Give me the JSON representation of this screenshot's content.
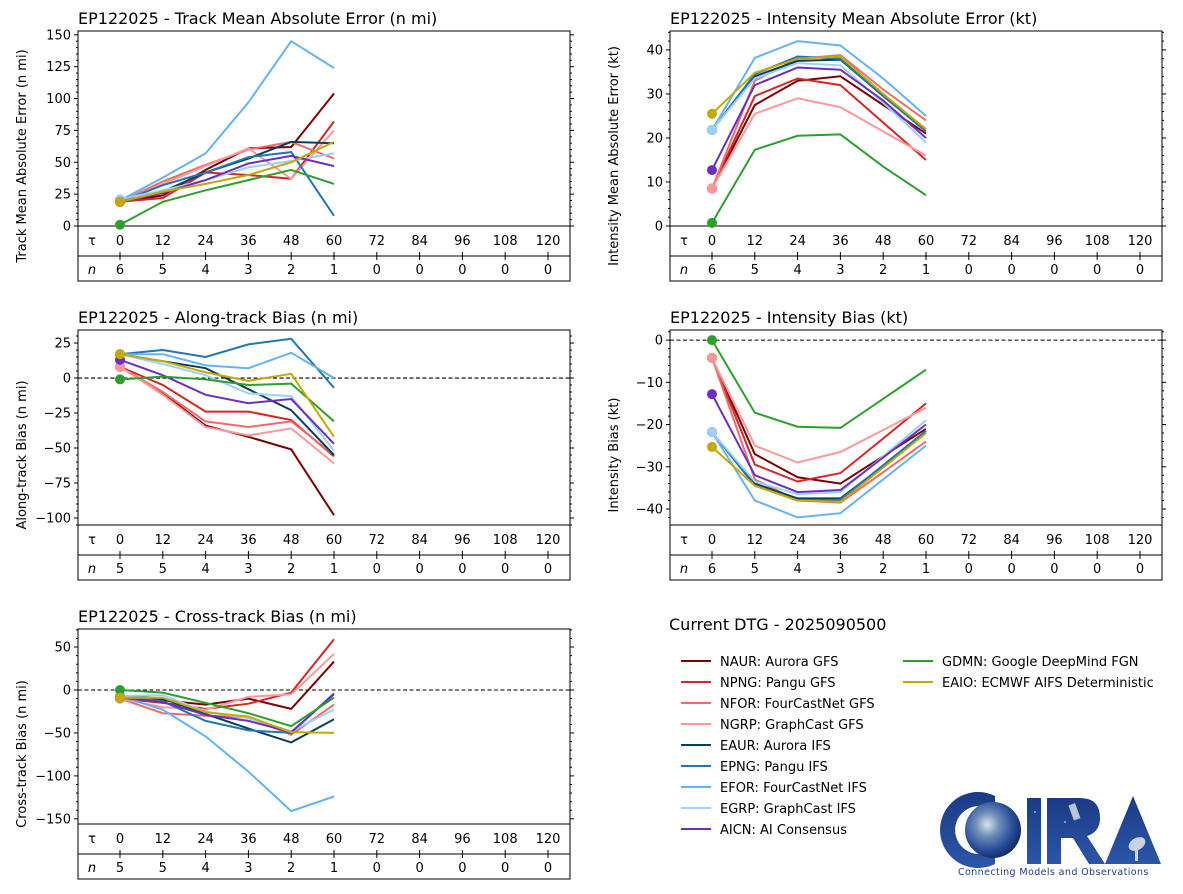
{
  "figure": {
    "dtg_label": "Current DTG - 2025090500",
    "logo": {
      "name": "CIRA",
      "tagline": "Connecting Models and Observations"
    }
  },
  "models": [
    {
      "id": "NAUR",
      "label": "NAUR: Aurora GFS",
      "color": "#7f0000"
    },
    {
      "id": "NPNG",
      "label": "NPNG: Pangu GFS",
      "color": "#d62728"
    },
    {
      "id": "NFOR",
      "label": "NFOR: FourCastNet GFS",
      "color": "#f26b6b"
    },
    {
      "id": "NGRP",
      "label": "NGRP: GraphCast GFS",
      "color": "#ff9999"
    },
    {
      "id": "EAUR",
      "label": "EAUR: Aurora IFS",
      "color": "#08415c"
    },
    {
      "id": "EPNG",
      "label": "EPNG: Pangu IFS",
      "color": "#1f77b4"
    },
    {
      "id": "EFOR",
      "label": "EFOR: FourCastNet IFS",
      "color": "#63b3f5"
    },
    {
      "id": "EGRP",
      "label": "EGRP: GraphCast IFS",
      "color": "#9fcffb"
    },
    {
      "id": "AICN",
      "label": "AICN: AI Consensus",
      "color": "#6a2fc4"
    },
    {
      "id": "GDMN",
      "label": "GDMN: Google DeepMind FGN",
      "color": "#2ca02c"
    },
    {
      "id": "EAIO",
      "label": "EAIO: ECMWF AIFS Deterministic",
      "color": "#c4aa00"
    }
  ],
  "chart_data": [
    {
      "id": "track-mae",
      "type": "line",
      "title": "EP122025 - Track Mean Absolute Error (n mi)",
      "ylabel": "Track Mean Absolute Error (n mi)",
      "xlabel": "",
      "ylim": [
        0,
        153
      ],
      "yticks": [
        0,
        25,
        50,
        75,
        100,
        125,
        150
      ],
      "zero_line": false,
      "tau_label": "τ",
      "n_label": "n",
      "x": [
        0,
        12,
        24,
        36,
        48,
        60,
        72,
        84,
        96,
        108,
        120
      ],
      "n": [
        6,
        5,
        4,
        3,
        2,
        1,
        0,
        0,
        0,
        0,
        0
      ],
      "series": [
        {
          "name": "NAUR",
          "values": [
            19,
            24,
            44,
            61,
            62,
            104
          ]
        },
        {
          "name": "NPNG",
          "values": [
            19,
            22,
            42,
            40,
            37,
            82
          ]
        },
        {
          "name": "NFOR",
          "values": [
            19,
            35,
            48,
            60,
            66,
            53
          ]
        },
        {
          "name": "NGRP",
          "values": [
            19,
            33,
            47,
            61,
            37,
            75
          ]
        },
        {
          "name": "EAUR",
          "values": [
            19,
            27,
            42,
            53,
            66,
            65
          ]
        },
        {
          "name": "EPNG",
          "values": [
            19,
            32,
            42,
            54,
            58,
            8
          ]
        },
        {
          "name": "EFOR",
          "values": [
            20,
            38,
            57,
            97,
            145,
            124
          ]
        },
        {
          "name": "EGRP",
          "values": [
            21,
            28,
            36,
            46,
            51,
            57
          ]
        },
        {
          "name": "AICN",
          "values": [
            19,
            26,
            36,
            49,
            55,
            47
          ]
        },
        {
          "name": "GDMN",
          "values": [
            1,
            19,
            28,
            36,
            44,
            33
          ]
        },
        {
          "name": "EAIO",
          "values": [
            19,
            27,
            33,
            40,
            50,
            66
          ]
        }
      ]
    },
    {
      "id": "intensity-mae",
      "type": "line",
      "title": "EP122025 - Intensity Mean Absolute Error (kt)",
      "ylabel": "Intensity Mean Absolute Error (kt)",
      "xlabel": "",
      "ylim": [
        0,
        44.3
      ],
      "yticks": [
        0,
        10,
        20,
        30,
        40
      ],
      "zero_line": false,
      "tau_label": "τ",
      "n_label": "n",
      "x": [
        0,
        12,
        24,
        36,
        48,
        60,
        72,
        84,
        96,
        108,
        120
      ],
      "n": [
        6,
        5,
        4,
        3,
        2,
        1,
        0,
        0,
        0,
        0,
        0
      ],
      "series": [
        {
          "name": "NAUR",
          "values": [
            8.5,
            27.5,
            33,
            34,
            27.5,
            21
          ]
        },
        {
          "name": "NPNG",
          "values": [
            8.5,
            29.5,
            33.5,
            32,
            23.5,
            15
          ]
        },
        {
          "name": "NFOR",
          "values": [
            8.5,
            33,
            38,
            38.8,
            31,
            24
          ]
        },
        {
          "name": "NGRP",
          "values": [
            8.5,
            25.5,
            29,
            27,
            21.5,
            16
          ]
        },
        {
          "name": "EAUR",
          "values": [
            21.8,
            34,
            37.5,
            37.8,
            29.5,
            22
          ]
        },
        {
          "name": "EPNG",
          "values": [
            21.8,
            34.5,
            38.5,
            38,
            29.5,
            21.5
          ]
        },
        {
          "name": "EFOR",
          "values": [
            21.8,
            38.2,
            42,
            41,
            33.5,
            25
          ]
        },
        {
          "name": "EGRP",
          "values": [
            21.8,
            33.5,
            37,
            36.5,
            28,
            19
          ]
        },
        {
          "name": "AICN",
          "values": [
            12.7,
            32,
            36,
            35.5,
            28.5,
            20
          ]
        },
        {
          "name": "GDMN",
          "values": [
            0.7,
            17.3,
            20.5,
            20.8,
            13.5,
            7
          ]
        },
        {
          "name": "EAIO",
          "values": [
            25.5,
            34.8,
            38,
            38.5,
            30,
            22
          ]
        }
      ]
    },
    {
      "id": "along-track-bias",
      "type": "line",
      "title": "EP122025 - Along-track Bias (n mi)",
      "ylabel": "Along-track Bias (n mi)",
      "xlabel": "",
      "ylim": [
        -105,
        34.3
      ],
      "yticks": [
        -100,
        -75,
        -50,
        -25,
        0,
        25
      ],
      "zero_line": true,
      "tau_label": "τ",
      "n_label": "n",
      "x": [
        0,
        12,
        24,
        36,
        48,
        60,
        72,
        84,
        96,
        108,
        120
      ],
      "n": [
        5,
        5,
        4,
        3,
        2,
        1,
        0,
        0,
        0,
        0,
        0
      ],
      "series": [
        {
          "name": "NAUR",
          "values": [
            8,
            -11,
            -34,
            -42,
            -51,
            -98
          ]
        },
        {
          "name": "NPNG",
          "values": [
            8,
            -5,
            -24,
            -24,
            -30,
            -56
          ]
        },
        {
          "name": "NFOR",
          "values": [
            8,
            -10,
            -31,
            -35,
            -31,
            -55
          ]
        },
        {
          "name": "NGRP",
          "values": [
            8,
            -12,
            -35,
            -41,
            -36,
            -61
          ]
        },
        {
          "name": "EAUR",
          "values": [
            17,
            12,
            7,
            -8,
            -23,
            -55
          ]
        },
        {
          "name": "EPNG",
          "values": [
            17,
            20,
            15,
            24,
            28,
            -7
          ]
        },
        {
          "name": "EFOR",
          "values": [
            17,
            17,
            9,
            7,
            18,
            0
          ]
        },
        {
          "name": "EGRP",
          "values": [
            17,
            10,
            2,
            -11,
            -13,
            -52
          ]
        },
        {
          "name": "AICN",
          "values": [
            13,
            2,
            -12,
            -18,
            -15,
            -47
          ]
        },
        {
          "name": "GDMN",
          "values": [
            -1,
            1,
            -1,
            -5,
            -4,
            -31
          ]
        },
        {
          "name": "EAIO",
          "values": [
            17,
            12,
            4,
            -2,
            3,
            -42
          ]
        }
      ]
    },
    {
      "id": "intensity-bias",
      "type": "line",
      "title": "EP122025 - Intensity Bias (kt)",
      "ylabel": "Intensity Bias (kt)",
      "xlabel": "",
      "ylim": [
        -43.8,
        2.4
      ],
      "yticks": [
        -40,
        -30,
        -20,
        -10,
        0
      ],
      "zero_line": true,
      "tau_label": "τ",
      "n_label": "n",
      "x": [
        0,
        12,
        24,
        36,
        48,
        60,
        72,
        84,
        96,
        108,
        120
      ],
      "n": [
        6,
        5,
        4,
        3,
        2,
        1,
        0,
        0,
        0,
        0,
        0
      ],
      "series": [
        {
          "name": "NAUR",
          "values": [
            -4.2,
            -27,
            -32.5,
            -34,
            -27.5,
            -21
          ]
        },
        {
          "name": "NPNG",
          "values": [
            -4.2,
            -29.5,
            -33.5,
            -31.5,
            -23.3,
            -15
          ]
        },
        {
          "name": "NFOR",
          "values": [
            -4.2,
            -33,
            -38,
            -38.5,
            -31.3,
            -24
          ]
        },
        {
          "name": "NGRP",
          "values": [
            -4.2,
            -25,
            -29,
            -26.5,
            -21.3,
            -16
          ]
        },
        {
          "name": "EAUR",
          "values": [
            -21.8,
            -34,
            -37.5,
            -37.5,
            -29.8,
            -22
          ]
        },
        {
          "name": "EPNG",
          "values": [
            -21.8,
            -34.5,
            -38,
            -37.8,
            -29.6,
            -21.5
          ]
        },
        {
          "name": "EFOR",
          "values": [
            -21.8,
            -38,
            -42,
            -41,
            -33,
            -25
          ]
        },
        {
          "name": "EGRP",
          "values": [
            -21.8,
            -33.5,
            -36.5,
            -36,
            -27.5,
            -19
          ]
        },
        {
          "name": "AICN",
          "values": [
            -12.8,
            -32,
            -36,
            -35.5,
            -27.8,
            -20
          ]
        },
        {
          "name": "GDMN",
          "values": [
            0,
            -17.2,
            -20.5,
            -20.8,
            -13.9,
            -7
          ]
        },
        {
          "name": "EAIO",
          "values": [
            -25.3,
            -34.5,
            -38,
            -38.3,
            -30.2,
            -22
          ]
        }
      ]
    },
    {
      "id": "cross-track-bias",
      "type": "line",
      "title": "EP122025 - Cross-track Bias (n mi)",
      "ylabel": "Cross-track Bias (n mi)",
      "xlabel": "",
      "ylim": [
        -156,
        71
      ],
      "yticks": [
        -150,
        -100,
        -50,
        0,
        50
      ],
      "zero_line": true,
      "tau_label": "τ",
      "n_label": "n",
      "x": [
        0,
        12,
        24,
        36,
        48,
        60,
        72,
        84,
        96,
        108,
        120
      ],
      "n": [
        5,
        5,
        4,
        3,
        2,
        1,
        0,
        0,
        0,
        0,
        0
      ],
      "series": [
        {
          "name": "NAUR",
          "values": [
            -10,
            -12,
            -17,
            -10,
            -22,
            33
          ]
        },
        {
          "name": "NPNG",
          "values": [
            -10,
            -15,
            -22,
            -16,
            -3,
            59
          ]
        },
        {
          "name": "NFOR",
          "values": [
            -10,
            -27,
            -30,
            -32,
            -52,
            -17
          ]
        },
        {
          "name": "NGRP",
          "values": [
            -10,
            -20,
            -23,
            -8,
            -5,
            42
          ]
        },
        {
          "name": "EAUR",
          "values": [
            -7,
            -10,
            -28,
            -45,
            -61,
            -34
          ]
        },
        {
          "name": "EPNG",
          "values": [
            -7,
            -13,
            -36,
            -47,
            -50,
            -4
          ]
        },
        {
          "name": "EFOR",
          "values": [
            -7,
            -23,
            -54,
            -95,
            -141,
            -124
          ]
        },
        {
          "name": "EGRP",
          "values": [
            -7,
            -6,
            -25,
            -33,
            -48,
            -23
          ]
        },
        {
          "name": "AICN",
          "values": [
            -9,
            -14,
            -29,
            -36,
            -49,
            -5
          ]
        },
        {
          "name": "GDMN",
          "values": [
            0,
            -3,
            -15,
            -27,
            -42,
            -9
          ]
        },
        {
          "name": "EAIO",
          "values": [
            -9,
            -9,
            -26,
            -31,
            -49,
            -50
          ]
        }
      ]
    }
  ]
}
